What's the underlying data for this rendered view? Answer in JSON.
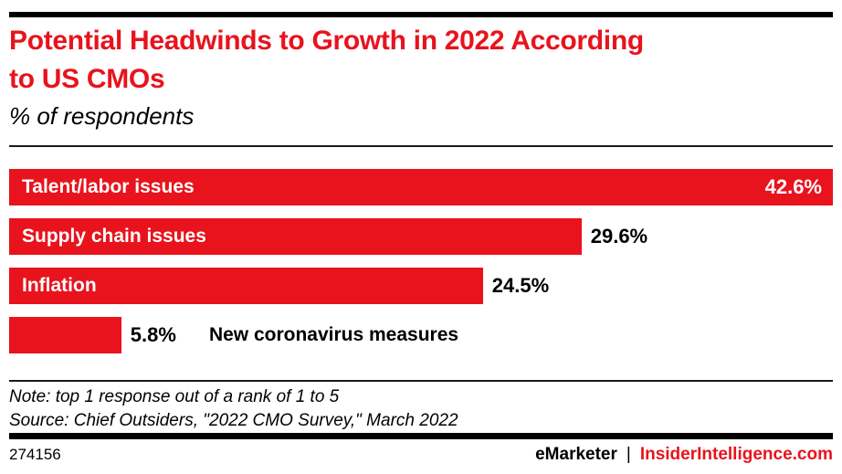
{
  "header": {
    "title": "Potential Headwinds to Growth in 2022 According to US CMOs",
    "title_lines": [
      "Potential Headwinds to Growth in 2022 According",
      "to US CMOs"
    ],
    "subtitle": "% of respondents"
  },
  "chart_data": {
    "type": "bar",
    "orientation": "horizontal",
    "title": "Potential Headwinds to Growth in 2022 According to US CMOs",
    "subtitle": "% of respondents",
    "unit": "%",
    "xlim": [
      0,
      42.6
    ],
    "grid": false,
    "legend": false,
    "bar_color": "#e8131d",
    "categories": [
      "Talent/labor issues",
      "Supply chain issues",
      "Inflation",
      "New coronavirus measures"
    ],
    "values": [
      42.6,
      29.6,
      24.5,
      5.8
    ],
    "bars": [
      {
        "label": "Talent/labor issues",
        "value": 42.6,
        "display": "42.6%",
        "label_inside": true,
        "value_inside": true
      },
      {
        "label": "Supply chain issues",
        "value": 29.6,
        "display": "29.6%",
        "label_inside": true,
        "value_inside": false
      },
      {
        "label": "Inflation",
        "value": 24.5,
        "display": "24.5%",
        "label_inside": true,
        "value_inside": false
      },
      {
        "label": "New coronavirus measures",
        "value": 5.8,
        "display": "5.8%",
        "label_inside": false,
        "value_inside": false
      }
    ]
  },
  "footnote": {
    "note": "Note: top 1 response out of a rank of 1 to 5",
    "source": "Source: Chief Outsiders, \"2022 CMO Survey,\" March 2022"
  },
  "footer": {
    "chart_id": "274156",
    "brand": "eMarketer",
    "separator": "|",
    "site": "InsiderIntelligence.com"
  },
  "colors": {
    "accent_red": "#e8131d",
    "text_black": "#000000",
    "bar_text_white": "#ffffff"
  }
}
